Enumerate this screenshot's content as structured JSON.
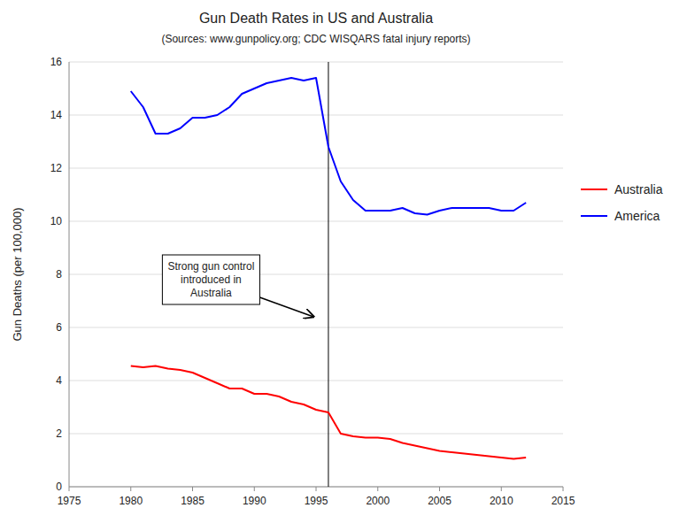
{
  "chart_data": {
    "type": "line",
    "title": "Gun Death Rates in US and Australia",
    "subtitle": "(Sources: www.gunpolicy.org; CDC WISQARS fatal injury reports)",
    "y_label": "Gun Deaths (per 100,000)",
    "x": [
      1980,
      1981,
      1982,
      1983,
      1984,
      1985,
      1986,
      1987,
      1988,
      1989,
      1990,
      1991,
      1992,
      1993,
      1994,
      1995,
      1996,
      1997,
      1998,
      1999,
      2000,
      2001,
      2002,
      2003,
      2004,
      2005,
      2006,
      2007,
      2008,
      2009,
      2010,
      2011,
      2012
    ],
    "series": [
      {
        "name": "Australia",
        "color": "#ff0000",
        "values": [
          4.55,
          4.5,
          4.55,
          4.45,
          4.4,
          4.3,
          4.1,
          3.9,
          3.7,
          3.7,
          3.5,
          3.5,
          3.4,
          3.2,
          3.1,
          2.9,
          2.8,
          2.0,
          1.9,
          1.85,
          1.85,
          1.8,
          1.65,
          1.55,
          1.45,
          1.35,
          1.3,
          1.25,
          1.2,
          1.15,
          1.1,
          1.05,
          1.1
        ]
      },
      {
        "name": "America",
        "color": "#0000ff",
        "values": [
          14.9,
          14.3,
          13.3,
          13.3,
          13.5,
          13.9,
          13.9,
          14.0,
          14.3,
          14.8,
          15.0,
          15.2,
          15.3,
          15.4,
          15.3,
          15.4,
          12.8,
          11.5,
          10.8,
          10.4,
          10.4,
          10.4,
          10.5,
          10.3,
          10.25,
          10.4,
          10.5,
          10.5,
          10.5,
          10.5,
          10.4,
          10.4,
          10.7
        ]
      }
    ],
    "xlim": [
      1975,
      2015
    ],
    "ylim": [
      0,
      16
    ],
    "xticks": [
      1975,
      1980,
      1985,
      1990,
      1995,
      2000,
      2005,
      2010,
      2015
    ],
    "yticks": [
      0,
      2,
      4,
      6,
      8,
      10,
      12,
      14,
      16
    ],
    "grid": true,
    "legend": "right",
    "reference_lines": [
      {
        "axis": "x",
        "value": 1996
      }
    ],
    "annotations": [
      {
        "text": "Strong gun control\nintroduced in\nAustralia",
        "x": 1986.5,
        "y": 7.8,
        "arrow_x": 1994.8,
        "arrow_y": 6.4
      }
    ]
  }
}
